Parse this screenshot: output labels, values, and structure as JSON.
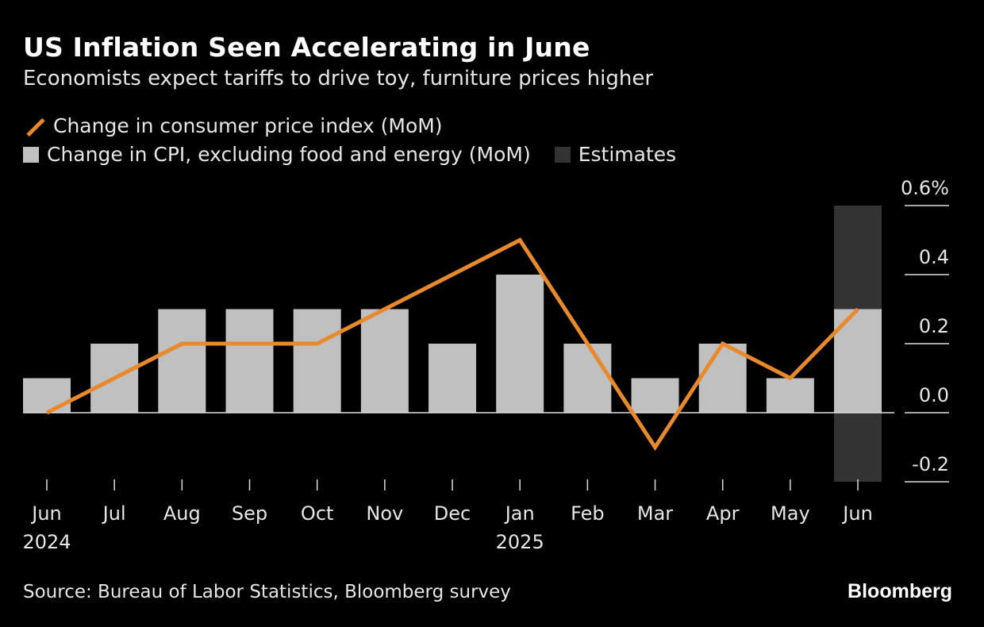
{
  "title": "US Inflation Seen Accelerating in June",
  "subtitle": "Economists expect tariffs to drive toy, furniture prices higher",
  "source": "Source: Bureau of Labor Statistics, Bloomberg survey",
  "logo": "Bloomberg",
  "chart_data": {
    "type": "bar",
    "categories": [
      "Jun",
      "Jul",
      "Aug",
      "Sep",
      "Oct",
      "Nov",
      "Dec",
      "Jan",
      "Feb",
      "Mar",
      "Apr",
      "May",
      "Jun"
    ],
    "year_labels": {
      "0": "2024",
      "7": "2025"
    },
    "series": [
      {
        "name": "Change in CPI, excluding food and energy (MoM)",
        "type": "bar",
        "color": "#c0c0c0",
        "values": [
          0.1,
          0.2,
          0.3,
          0.3,
          0.3,
          0.3,
          0.2,
          0.4,
          0.2,
          0.1,
          0.2,
          0.1,
          0.3
        ]
      },
      {
        "name": "Change in consumer price index (MoM)",
        "type": "line",
        "color": "#e8892b",
        "values": [
          0.0,
          0.1,
          0.2,
          0.2,
          0.2,
          0.3,
          0.4,
          0.5,
          0.2,
          -0.1,
          0.2,
          0.1,
          0.3
        ]
      }
    ],
    "estimates": {
      "name": "Estimates",
      "color": "#333333",
      "categories_index": [
        12
      ]
    },
    "ylim": [
      -0.2,
      0.6
    ],
    "yticks": [
      -0.2,
      0.0,
      0.2,
      0.4,
      0.6
    ],
    "ytick_labels": [
      "-0.2",
      "0.0",
      "0.2",
      "0.4",
      "0.6%"
    ],
    "y_axis_position": "right",
    "legend_position": "top-left"
  }
}
